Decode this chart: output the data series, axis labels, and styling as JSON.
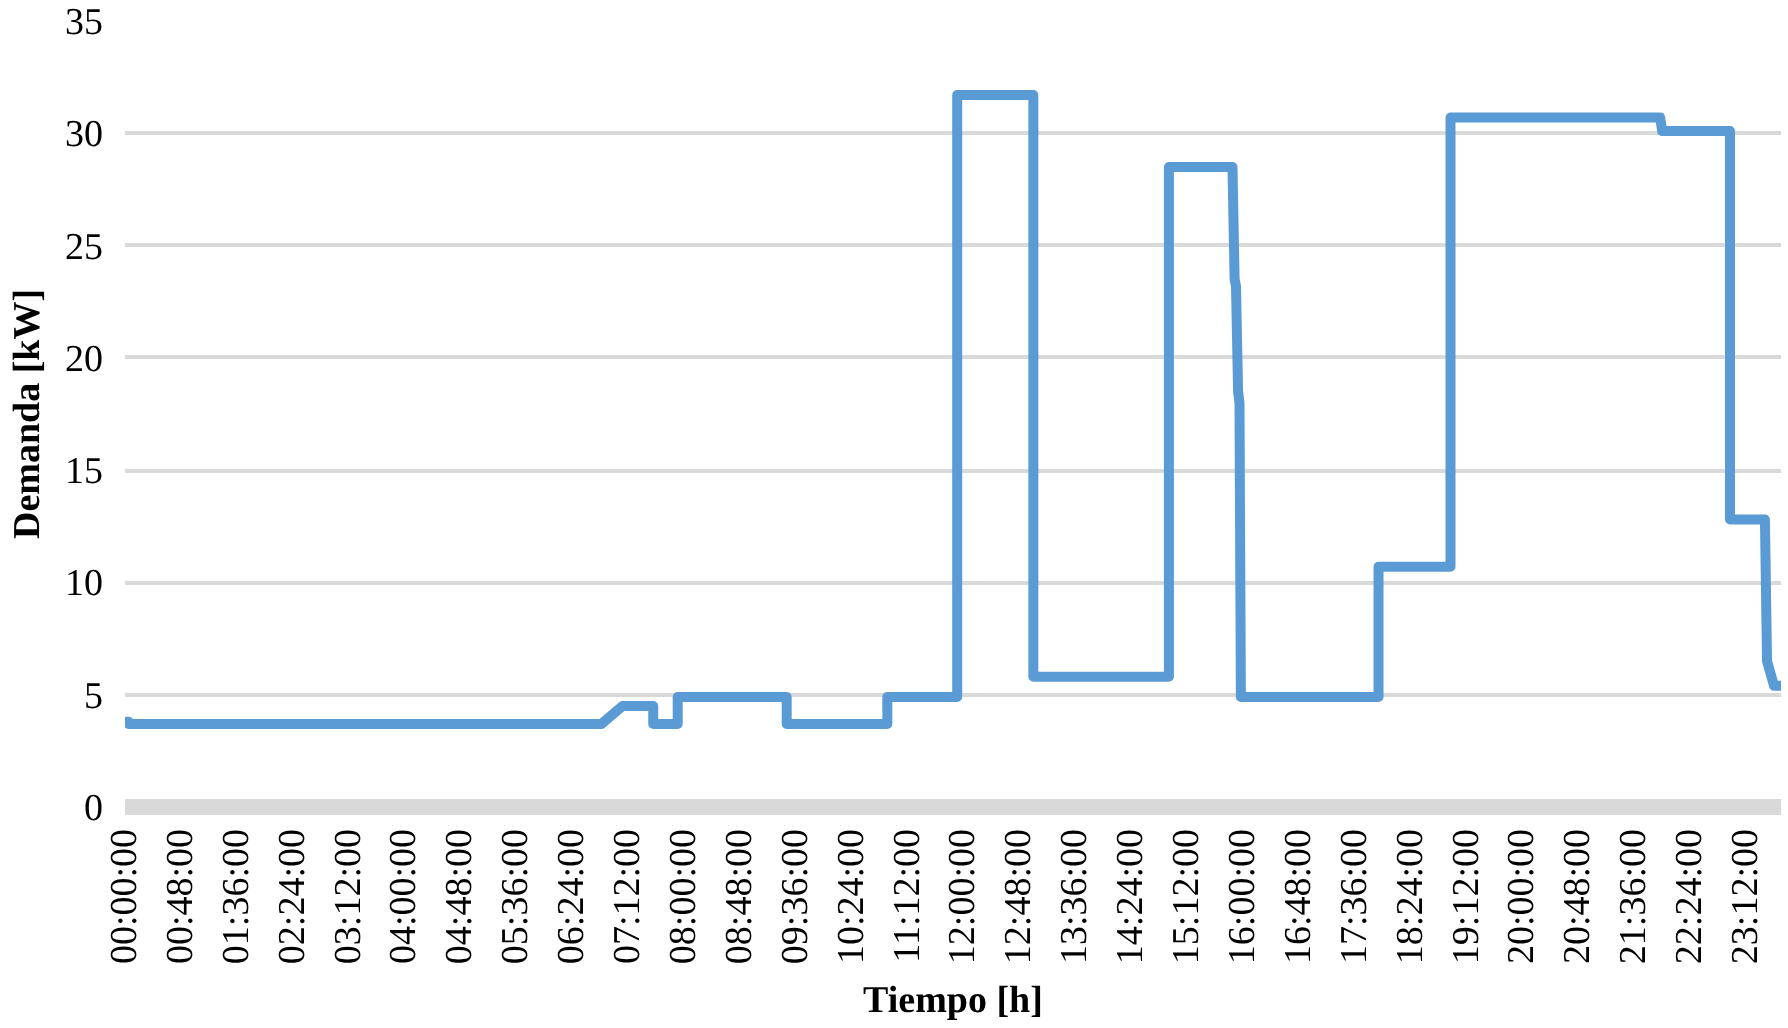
{
  "chart_data": {
    "type": "line",
    "xlabel": "Tiempo [h]",
    "ylabel": "Demanda [kW]",
    "xlim": [
      0,
      23.7
    ],
    "ylim": [
      0,
      35
    ],
    "yticks": [
      0,
      5,
      10,
      15,
      20,
      25,
      30,
      35
    ],
    "xticks": [
      {
        "value": 0,
        "label": "00:00:00"
      },
      {
        "value": 0.8,
        "label": "00:48:00"
      },
      {
        "value": 1.6,
        "label": "01:36:00"
      },
      {
        "value": 2.4,
        "label": "02:24:00"
      },
      {
        "value": 3.2,
        "label": "03:12:00"
      },
      {
        "value": 4.0,
        "label": "04:00:00"
      },
      {
        "value": 4.8,
        "label": "04:48:00"
      },
      {
        "value": 5.6,
        "label": "05:36:00"
      },
      {
        "value": 6.4,
        "label": "06:24:00"
      },
      {
        "value": 7.2,
        "label": "07:12:00"
      },
      {
        "value": 8.0,
        "label": "08:00:00"
      },
      {
        "value": 8.8,
        "label": "08:48:00"
      },
      {
        "value": 9.6,
        "label": "09:36:00"
      },
      {
        "value": 10.4,
        "label": "10:24:00"
      },
      {
        "value": 11.2,
        "label": "11:12:00"
      },
      {
        "value": 12.0,
        "label": "12:00:00"
      },
      {
        "value": 12.8,
        "label": "12:48:00"
      },
      {
        "value": 13.6,
        "label": "13:36:00"
      },
      {
        "value": 14.4,
        "label": "14:24:00"
      },
      {
        "value": 15.2,
        "label": "15:12:00"
      },
      {
        "value": 16.0,
        "label": "16:00:00"
      },
      {
        "value": 16.8,
        "label": "16:48:00"
      },
      {
        "value": 17.6,
        "label": "17:36:00"
      },
      {
        "value": 18.4,
        "label": "18:24:00"
      },
      {
        "value": 19.2,
        "label": "19:12:00"
      },
      {
        "value": 20.0,
        "label": "20:00:00"
      },
      {
        "value": 20.8,
        "label": "20:48:00"
      },
      {
        "value": 21.6,
        "label": "21:36:00"
      },
      {
        "value": 22.4,
        "label": "22:24:00"
      },
      {
        "value": 23.2,
        "label": "23:12:00"
      }
    ],
    "grid": "y",
    "marker": "none",
    "line_style": "solid",
    "series": [
      {
        "color": "#5b9bd5",
        "x": [
          0,
          0.05,
          0.05,
          6.82,
          7.12,
          7.56,
          7.56,
          7.91,
          7.91,
          9.47,
          9.47,
          10.91,
          10.91,
          11.91,
          11.91,
          13.0,
          13.0,
          14.94,
          14.94,
          15.85,
          15.88,
          15.9,
          15.93,
          15.95,
          15.97,
          17.94,
          17.94,
          18.97,
          18.97,
          21.97,
          22.0,
          22.97,
          22.97,
          23.47,
          23.5,
          23.6,
          23.7
        ],
        "values": [
          3.8,
          3.8,
          3.7,
          3.7,
          4.5,
          4.5,
          3.7,
          3.7,
          4.9,
          4.9,
          3.7,
          3.7,
          4.9,
          4.9,
          31.7,
          31.7,
          5.8,
          5.8,
          28.5,
          28.5,
          23.5,
          23.2,
          18.5,
          18.0,
          4.9,
          4.9,
          10.7,
          10.7,
          30.7,
          30.7,
          30.1,
          30.1,
          12.8,
          12.8,
          6.5,
          5.4,
          5.4
        ]
      }
    ]
  }
}
